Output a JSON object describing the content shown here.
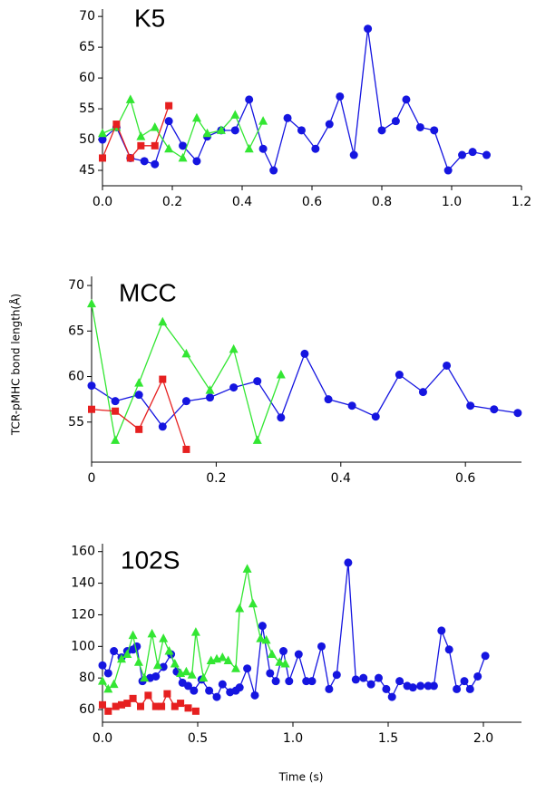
{
  "chart_data": [
    {
      "type": "line",
      "title": "K5",
      "xlim": [
        0,
        1.2
      ],
      "ylim": [
        42.5,
        71.2
      ],
      "xticks": [
        {
          "value": 0,
          "label": "0.0"
        },
        0.2,
        0.4,
        0.6,
        0.8,
        {
          "value": 1,
          "label": "1.0"
        },
        1.2
      ],
      "yticks": [
        45,
        50,
        55,
        60,
        65,
        70
      ],
      "series": [
        {
          "color": "#1515e0",
          "marker": "circle",
          "x": [
            0,
            0.04,
            0.08,
            0.12,
            0.15,
            0.19,
            0.23,
            0.27,
            0.3,
            0.34,
            0.38,
            0.42,
            0.46,
            0.49,
            0.53,
            0.57,
            0.61,
            0.65,
            0.68,
            0.72,
            0.76,
            0.8,
            0.84,
            0.87,
            0.91,
            0.95,
            0.99,
            1.03,
            1.06,
            1.1
          ],
          "values": [
            50,
            52,
            47,
            46.5,
            46,
            53,
            49,
            46.5,
            50.5,
            51.5,
            51.5,
            56.5,
            48.5,
            45,
            53.5,
            51.5,
            48.5,
            52.5,
            57,
            47.5,
            68,
            51.5,
            53,
            56.5,
            52,
            51.5,
            45,
            47.5,
            48,
            47.5
          ]
        },
        {
          "color": "#33e633",
          "marker": "triangle",
          "x": [
            0,
            0.04,
            0.08,
            0.11,
            0.15,
            0.19,
            0.23,
            0.27,
            0.3,
            0.34,
            0.38,
            0.42,
            0.46
          ],
          "values": [
            51,
            52,
            56.5,
            50.5,
            52,
            48.5,
            47,
            53.5,
            51,
            51.5,
            54,
            48.5,
            53
          ]
        },
        {
          "color": "#e62020",
          "marker": "square",
          "x": [
            0,
            0.04,
            0.08,
            0.11,
            0.15,
            0.19
          ],
          "values": [
            47,
            52.5,
            47,
            49,
            49,
            55.5
          ]
        }
      ]
    },
    {
      "type": "line",
      "title": "MCC",
      "ylabel": "TCR-pMHC bond length(Å)",
      "xlim": [
        0,
        0.69
      ],
      "ylim": [
        50.6,
        71
      ],
      "xticks": [
        0,
        0.2,
        0.4,
        0.6
      ],
      "yticks": [
        55,
        60,
        65,
        70
      ],
      "series": [
        {
          "color": "#1515e0",
          "marker": "circle",
          "x": [
            0,
            0.038,
            0.076,
            0.114,
            0.152,
            0.19,
            0.228,
            0.266,
            0.304,
            0.342,
            0.38,
            0.418,
            0.456,
            0.494,
            0.532,
            0.57,
            0.608,
            0.646,
            0.684
          ],
          "values": [
            59,
            57.3,
            58,
            54.5,
            57.3,
            57.7,
            58.8,
            59.5,
            55.5,
            62.5,
            57.5,
            56.8,
            55.6,
            60.2,
            58.3,
            61.2,
            56.8,
            56.4,
            56
          ]
        },
        {
          "color": "#33e633",
          "marker": "triangle",
          "x": [
            0,
            0.038,
            0.076,
            0.114,
            0.152,
            0.19,
            0.228,
            0.266,
            0.304
          ],
          "values": [
            68,
            53,
            59.3,
            66,
            62.5,
            58.5,
            63,
            53,
            60.2
          ]
        },
        {
          "color": "#e62020",
          "marker": "square",
          "x": [
            0,
            0.038,
            0.076,
            0.114,
            0.152
          ],
          "values": [
            56.4,
            56.2,
            54.2,
            59.7,
            52
          ]
        }
      ]
    },
    {
      "type": "line",
      "title": "102S",
      "xlabel": "Time (s)",
      "xlim": [
        0,
        2.2
      ],
      "ylim": [
        52,
        165
      ],
      "xticks": [
        {
          "value": 0,
          "label": "0.0"
        },
        0.5,
        {
          "value": 1,
          "label": "1.0"
        },
        1.5,
        {
          "value": 2,
          "label": "2.0"
        }
      ],
      "yticks": [
        60,
        80,
        100,
        120,
        140,
        160
      ],
      "series": [
        {
          "color": "#1515e0",
          "marker": "circle",
          "x": [
            0,
            0.03,
            0.06,
            0.1,
            0.13,
            0.16,
            0.18,
            0.21,
            0.25,
            0.28,
            0.32,
            0.36,
            0.39,
            0.42,
            0.45,
            0.48,
            0.52,
            0.56,
            0.6,
            0.63,
            0.67,
            0.7,
            0.72,
            0.76,
            0.8,
            0.84,
            0.88,
            0.91,
            0.95,
            0.98,
            1.03,
            1.07,
            1.1,
            1.15,
            1.19,
            1.23,
            1.29,
            1.33,
            1.37,
            1.41,
            1.45,
            1.49,
            1.52,
            1.56,
            1.6,
            1.63,
            1.67,
            1.71,
            1.74,
            1.78,
            1.82,
            1.86,
            1.9,
            1.93,
            1.97,
            2.01
          ],
          "values": [
            88,
            83,
            97,
            93,
            97,
            98,
            100,
            78,
            80,
            81,
            87,
            95,
            84,
            77,
            75,
            72,
            79,
            72,
            68,
            76,
            71,
            72,
            74,
            86,
            69,
            113,
            83,
            78,
            97,
            78,
            95,
            78,
            78,
            100,
            73,
            82,
            153,
            79,
            80,
            76,
            80,
            73,
            68,
            78,
            75,
            74,
            75,
            75,
            75,
            110,
            98,
            73,
            78,
            73,
            81,
            94
          ]
        },
        {
          "color": "#33e633",
          "marker": "triangle",
          "x": [
            0,
            0.03,
            0.06,
            0.1,
            0.13,
            0.16,
            0.19,
            0.22,
            0.26,
            0.29,
            0.32,
            0.35,
            0.38,
            0.41,
            0.44,
            0.47,
            0.49,
            0.53,
            0.57,
            0.6,
            0.63,
            0.66,
            0.7,
            0.72,
            0.76,
            0.79,
            0.83,
            0.86,
            0.89,
            0.93,
            0.96
          ],
          "values": [
            78,
            73,
            76,
            92,
            95,
            107,
            90,
            80,
            108,
            88,
            105,
            97,
            89,
            83,
            84,
            82,
            109,
            80,
            91,
            92,
            93,
            91,
            86,
            124,
            149,
            127,
            105,
            104,
            95,
            90,
            89
          ]
        },
        {
          "color": "#e62020",
          "marker": "square",
          "x": [
            0,
            0.03,
            0.07,
            0.1,
            0.13,
            0.16,
            0.2,
            0.24,
            0.28,
            0.31,
            0.34,
            0.38,
            0.41,
            0.45,
            0.49
          ],
          "values": [
            63,
            59,
            62,
            63,
            64,
            67,
            62,
            69,
            62,
            62,
            70,
            62,
            64,
            61,
            59
          ]
        }
      ]
    }
  ]
}
